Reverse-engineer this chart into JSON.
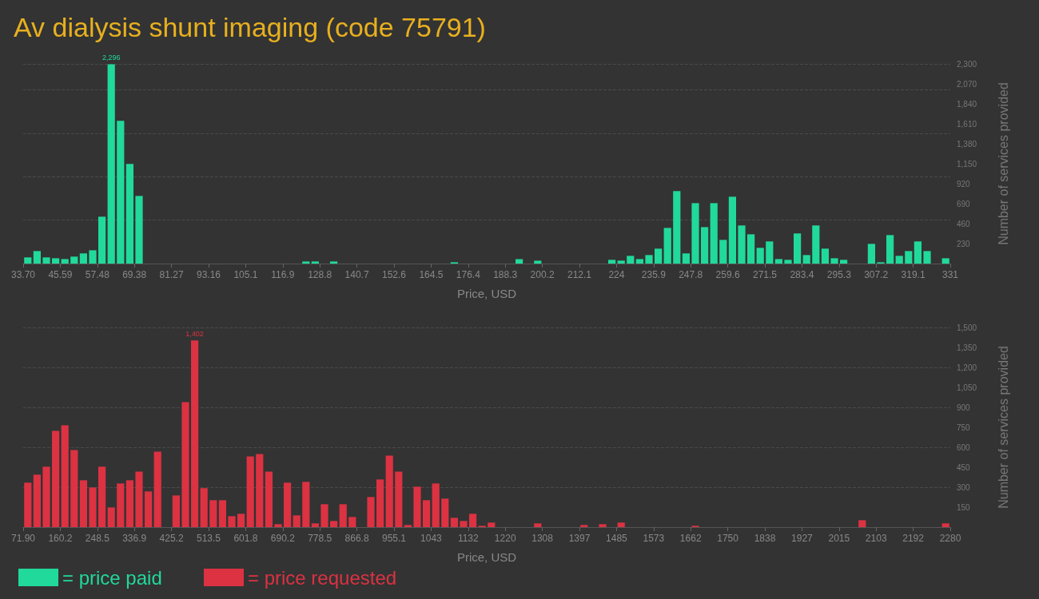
{
  "chart_data": [
    {
      "type": "histogram",
      "title": "Av dialysis shunt imaging (code 75791)",
      "xlabel": "Price, USD",
      "ylabel": "Number of services provided",
      "bins": [
        33.7,
        36.673,
        39.646,
        42.619,
        45.592,
        48.565,
        51.538,
        54.511,
        57.484,
        60.457,
        63.43,
        66.403,
        69.376,
        72.349,
        75.322,
        78.295,
        81.268,
        84.241,
        87.214,
        90.187,
        93.16,
        96.133,
        99.106,
        102.079,
        105.052,
        108.025,
        110.998,
        113.971,
        116.944,
        119.917,
        122.89,
        125.863,
        128.836,
        131.809,
        134.782,
        137.755,
        140.728,
        143.701,
        146.674,
        149.647,
        152.62,
        155.593,
        158.566,
        161.539,
        164.512,
        167.485,
        170.458,
        173.431,
        176.404,
        179.377,
        182.35,
        185.323,
        188.296,
        191.269,
        194.242,
        197.215,
        200.188,
        203.161,
        206.134,
        209.107,
        212.08,
        215.053,
        218.026,
        220.999,
        223.972,
        226.945,
        229.918,
        232.891,
        235.864,
        238.837,
        241.81,
        244.783,
        247.756,
        250.729,
        253.702,
        256.675,
        259.648,
        262.621,
        265.594,
        268.567,
        271.54,
        274.513,
        277.486,
        280.459,
        283.432,
        286.405,
        289.378,
        292.351,
        295.324,
        298.297,
        301.27,
        304.243,
        307.216,
        310.189,
        313.162,
        316.135,
        319.108,
        322.081,
        325.054,
        328.027,
        331
      ],
      "series": [
        {
          "name": "= price paid",
          "color": "#21d99b",
          "values": [
            71,
            144,
            71,
            61,
            52,
            80,
            117,
            153,
            540,
            2296,
            1644,
            1147,
            779,
            0,
            0,
            0,
            0,
            0,
            0,
            0,
            0,
            0,
            0,
            0,
            0,
            0,
            0,
            0,
            0,
            0,
            24,
            24,
            0,
            24,
            0,
            0,
            0,
            0,
            0,
            0,
            0,
            0,
            0,
            0,
            0,
            0,
            15,
            0,
            0,
            0,
            0,
            0,
            0,
            51,
            0,
            33,
            0,
            0,
            0,
            0,
            0,
            0,
            0,
            43,
            34,
            89,
            52,
            98,
            172,
            411,
            834,
            117,
            696,
            420,
            696,
            273,
            770,
            439,
            337,
            181,
            255,
            52,
            43,
            347,
            98,
            439,
            172,
            61,
            43,
            0,
            0,
            227,
            15,
            328,
            89,
            144,
            255,
            144,
            0,
            61
          ],
          "value_labels": [
            null,
            null,
            null,
            null,
            null,
            null,
            null,
            null,
            null,
            "2,296",
            null,
            null,
            null,
            null,
            null,
            null,
            null,
            null,
            null,
            null,
            null,
            null,
            null,
            null,
            null,
            null,
            null,
            null,
            null,
            null,
            null,
            null,
            null,
            null,
            null,
            null,
            null,
            null,
            null,
            null,
            null,
            null,
            null,
            null,
            null,
            null,
            null,
            null,
            null,
            null,
            null,
            null,
            null,
            null,
            null,
            null,
            null,
            null,
            null,
            null,
            null,
            null,
            null,
            null,
            null,
            null,
            null,
            null,
            null,
            null,
            null,
            null,
            null,
            null,
            null,
            null,
            null,
            null,
            null,
            null,
            null,
            null,
            null,
            null,
            null,
            null,
            null,
            null,
            null,
            null,
            null,
            null,
            null,
            null,
            null,
            null,
            null,
            null,
            null,
            null
          ]
        }
      ],
      "xlim": [
        33.7,
        331
      ],
      "xticks": [
        {
          "value": 33.7,
          "label": "33.70"
        },
        {
          "value": 45.592,
          "label": "45.59"
        },
        {
          "value": 57.484,
          "label": "57.48"
        },
        {
          "value": 69.376,
          "label": "69.38"
        },
        {
          "value": 81.268,
          "label": "81.27"
        },
        {
          "value": 93.16,
          "label": "93.16"
        },
        {
          "value": 105.052,
          "label": "105.1"
        },
        {
          "value": 116.944,
          "label": "116.9"
        },
        {
          "value": 128.836,
          "label": "128.8"
        },
        {
          "value": 140.728,
          "label": "140.7"
        },
        {
          "value": 152.62,
          "label": "152.6"
        },
        {
          "value": 164.512,
          "label": "164.5"
        },
        {
          "value": 176.404,
          "label": "176.4"
        },
        {
          "value": 188.296,
          "label": "188.3"
        },
        {
          "value": 200.188,
          "label": "200.2"
        },
        {
          "value": 212.08,
          "label": "212.1"
        },
        {
          "value": 223.972,
          "label": "224"
        },
        {
          "value": 235.864,
          "label": "235.9"
        },
        {
          "value": 247.756,
          "label": "247.8"
        },
        {
          "value": 259.648,
          "label": "259.6"
        },
        {
          "value": 271.54,
          "label": "271.5"
        },
        {
          "value": 283.432,
          "label": "283.4"
        },
        {
          "value": 295.324,
          "label": "295.3"
        },
        {
          "value": 307.216,
          "label": "307.2"
        },
        {
          "value": 319.108,
          "label": "319.1"
        },
        {
          "value": 331,
          "label": "331"
        }
      ],
      "ylim": [
        0,
        2300
      ],
      "yticks": [
        230,
        460,
        690,
        920,
        {
          "value": 1150,
          "label": "1,150"
        },
        {
          "value": 1380,
          "label": "1,380"
        },
        {
          "value": 1610,
          "label": "1,610"
        },
        {
          "value": 1840,
          "label": "1,840"
        },
        {
          "value": 2070,
          "label": "2,070"
        },
        {
          "value": 2300,
          "label": "2,300"
        }
      ],
      "grid": "y",
      "legend": "bottom left"
    },
    {
      "type": "histogram",
      "xlabel": "Price, USD",
      "ylabel": "Number of services provided",
      "bins": [
        71.9,
        93.981,
        116.062,
        138.143,
        160.224,
        182.305,
        204.386,
        226.467,
        248.548,
        270.629,
        292.71,
        314.791,
        336.872,
        358.953,
        381.034,
        403.115,
        425.196,
        447.277,
        469.358,
        491.439,
        513.52,
        535.601,
        557.682,
        579.763,
        601.844,
        623.925,
        646.006,
        668.087,
        690.168,
        712.249,
        734.33,
        756.411,
        778.492,
        800.573,
        822.654,
        844.735,
        866.816,
        888.897,
        910.978,
        933.059,
        955.14,
        977.221,
        999.302,
        1021.383,
        1043.464,
        1065.545,
        1087.626,
        1109.707,
        1131.788,
        1153.869,
        1175.95,
        1198.031,
        1220.112,
        1242.193,
        1264.274,
        1286.355,
        1308.436,
        1330.517,
        1352.598,
        1374.679,
        1396.76,
        1418.841,
        1440.922,
        1463.003,
        1485.084,
        1507.165,
        1529.246,
        1551.327,
        1573.408,
        1595.489,
        1617.57,
        1639.651,
        1661.732,
        1683.813,
        1705.894,
        1727.975,
        1750.056,
        1772.137,
        1794.218,
        1816.299,
        1838.38,
        1860.461,
        1882.542,
        1904.623,
        1926.704,
        1948.785,
        1970.866,
        1992.947,
        2015.028,
        2037.109,
        2059.19,
        2081.271,
        2103.352,
        2125.433,
        2147.514,
        2169.595,
        2191.676,
        2213.757,
        2235.838,
        2257.919,
        2280
      ],
      "series": [
        {
          "name": "= price requested",
          "color": "#dc3242",
          "values": [
            334,
            394,
            454,
            723,
            765,
            579,
            352,
            298,
            454,
            148,
            328,
            352,
            417,
            268,
            567,
            0,
            238,
            939,
            1402,
            292,
            202,
            202,
            82,
            100,
            531,
            549,
            417,
            22,
            334,
            88,
            340,
            28,
            172,
            46,
            172,
            76,
            0,
            226,
            358,
            537,
            417,
            16,
            304,
            202,
            328,
            214,
            70,
            46,
            100,
            10,
            34,
            0,
            0,
            0,
            0,
            28,
            0,
            0,
            0,
            0,
            16,
            0,
            22,
            0,
            34,
            0,
            0,
            0,
            0,
            0,
            0,
            0,
            10,
            0,
            0,
            0,
            0,
            0,
            0,
            0,
            0,
            0,
            0,
            0,
            0,
            0,
            0,
            0,
            0,
            0,
            52,
            0,
            0,
            0,
            0,
            0,
            0,
            0,
            0,
            28
          ],
          "value_labels": [
            null,
            null,
            null,
            null,
            null,
            null,
            null,
            null,
            null,
            null,
            null,
            null,
            null,
            null,
            null,
            null,
            null,
            null,
            "1,402",
            null,
            null,
            null,
            null,
            null,
            null,
            null,
            null,
            null,
            null,
            null,
            null,
            null,
            null,
            null,
            null,
            null,
            null,
            null,
            null,
            null,
            null,
            null,
            null,
            null,
            null,
            null,
            null,
            null,
            null,
            null,
            null,
            null,
            null,
            null,
            null,
            null,
            null,
            null,
            null,
            null,
            null,
            null,
            null,
            null,
            null,
            null,
            null,
            null,
            null,
            null,
            null,
            null,
            null,
            null,
            null,
            null,
            null,
            null,
            null,
            null,
            null,
            null,
            null,
            null,
            null,
            null,
            null,
            null,
            null,
            null,
            null,
            null,
            null,
            null,
            null,
            null,
            null,
            null,
            null,
            null
          ]
        }
      ],
      "xlim": [
        71.9,
        2280
      ],
      "xticks": [
        {
          "value": 71.9,
          "label": "71.90"
        },
        {
          "value": 160.224,
          "label": "160.2"
        },
        {
          "value": 248.548,
          "label": "248.5"
        },
        {
          "value": 336.872,
          "label": "336.9"
        },
        {
          "value": 425.196,
          "label": "425.2"
        },
        {
          "value": 513.52,
          "label": "513.5"
        },
        {
          "value": 601.844,
          "label": "601.8"
        },
        {
          "value": 690.168,
          "label": "690.2"
        },
        {
          "value": 778.492,
          "label": "778.5"
        },
        {
          "value": 866.816,
          "label": "866.8"
        },
        {
          "value": 955.14,
          "label": "955.1"
        },
        {
          "value": 1043.464,
          "label": "1043"
        },
        {
          "value": 1131.788,
          "label": "1132"
        },
        {
          "value": 1220.112,
          "label": "1220"
        },
        {
          "value": 1308.436,
          "label": "1308"
        },
        {
          "value": 1396.76,
          "label": "1397"
        },
        {
          "value": 1485.084,
          "label": "1485"
        },
        {
          "value": 1573.408,
          "label": "1573"
        },
        {
          "value": 1661.732,
          "label": "1662"
        },
        {
          "value": 1750.056,
          "label": "1750"
        },
        {
          "value": 1838.38,
          "label": "1838"
        },
        {
          "value": 1926.704,
          "label": "1927"
        },
        {
          "value": 2015.028,
          "label": "2015"
        },
        {
          "value": 2103.352,
          "label": "2103"
        },
        {
          "value": 2191.676,
          "label": "2192"
        },
        {
          "value": 2280,
          "label": "2280"
        }
      ],
      "ylim": [
        0,
        1500
      ],
      "yticks": [
        150,
        300,
        450,
        600,
        750,
        900,
        {
          "value": 1050,
          "label": "1,050"
        },
        {
          "value": 1200,
          "label": "1,200"
        },
        {
          "value": 1350,
          "label": "1,350"
        },
        {
          "value": 1500,
          "label": "1,500"
        }
      ],
      "grid": "y",
      "legend": "bottom left"
    }
  ]
}
